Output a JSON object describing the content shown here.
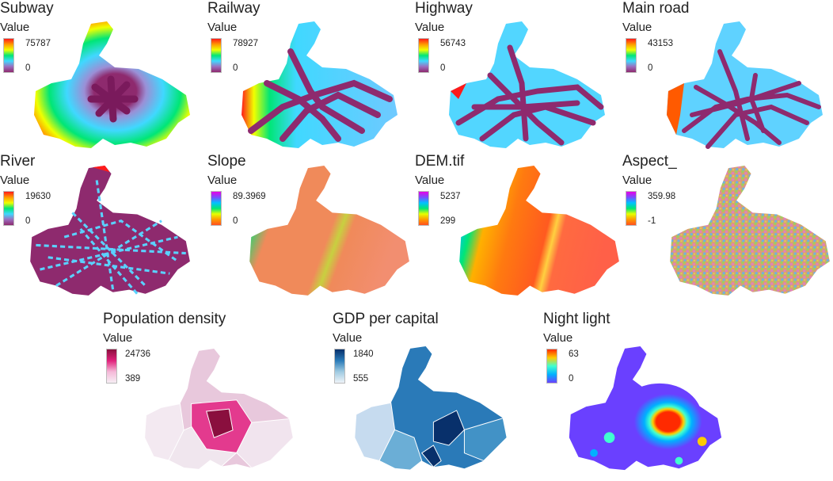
{
  "panels": [
    {
      "title": "Subway",
      "legend_label": "Value",
      "max": "75787",
      "min": "0",
      "colors": [
        "#ff1a1a",
        "#ff9a00",
        "#f0ff00",
        "#00e676",
        "#40d8ff",
        "#9b6fc0",
        "#8e2a6e"
      ]
    },
    {
      "title": "Railway",
      "legend_label": "Value",
      "max": "78927",
      "min": "0",
      "colors": [
        "#ff1a1a",
        "#ff9a00",
        "#f0ff00",
        "#00e676",
        "#40d8ff",
        "#9b6fc0",
        "#8e2a6e"
      ]
    },
    {
      "title": "Highway",
      "legend_label": "Value",
      "max": "56743",
      "min": "0",
      "colors": [
        "#ff1a1a",
        "#ff9a00",
        "#f0ff00",
        "#00e676",
        "#40d8ff",
        "#9b6fc0",
        "#8e2a6e"
      ]
    },
    {
      "title": "Main road",
      "legend_label": "Value",
      "max": "43153",
      "min": "0",
      "colors": [
        "#ff1a1a",
        "#ff9a00",
        "#f0ff00",
        "#00e676",
        "#40d8ff",
        "#9b6fc0",
        "#8e2a6e"
      ]
    },
    {
      "title": "River",
      "legend_label": "Value",
      "max": "19630",
      "min": "0",
      "colors": [
        "#ff1a1a",
        "#ff9a00",
        "#f0ff00",
        "#00e676",
        "#40d8ff",
        "#9b6fc0",
        "#8e2a6e"
      ]
    },
    {
      "title": "Slope",
      "legend_label": "Value",
      "max": "89.3969",
      "min": "0",
      "colors": [
        "#e600e6",
        "#7a4cff",
        "#00c0ff",
        "#00e676",
        "#e6ff00",
        "#ff9a00",
        "#ff5020"
      ]
    },
    {
      "title": "DEM.tif",
      "legend_label": "Value",
      "max": "5237",
      "min": "299",
      "colors": [
        "#e600e6",
        "#7a4cff",
        "#00c0ff",
        "#00e676",
        "#e6ff00",
        "#ff9a00",
        "#ff5020"
      ]
    },
    {
      "title": "Aspect_",
      "legend_label": "Value",
      "max": "359.98",
      "min": "-1",
      "colors": [
        "#e600e6",
        "#7a4cff",
        "#00c0ff",
        "#00e676",
        "#e6ff00",
        "#ff9a00",
        "#ff5020"
      ]
    },
    {
      "title": "Population density",
      "legend_label": "Value",
      "max": "24736",
      "min": "389",
      "colors": [
        "#8a0f3e",
        "#e0207a",
        "#f5b8d8",
        "#f6eef4"
      ]
    },
    {
      "title": "GDP per capital",
      "legend_label": "Value",
      "max": "1840",
      "min": "555",
      "colors": [
        "#08306b",
        "#2a7ab8",
        "#9ecae1",
        "#eef3f8"
      ]
    },
    {
      "title": "Night light",
      "legend_label": "Value",
      "max": "63",
      "min": "0",
      "colors": [
        "#ff2a00",
        "#ffcc00",
        "#40ffd0",
        "#00b0ff",
        "#6a40ff"
      ]
    }
  ]
}
